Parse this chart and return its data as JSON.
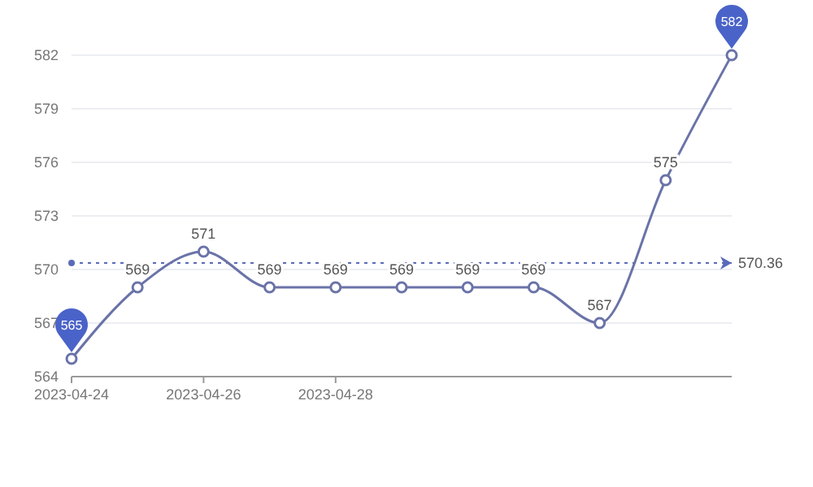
{
  "chart_data": {
    "type": "line",
    "x": [
      "2023-04-24",
      "2023-04-25",
      "2023-04-26",
      "2023-04-27",
      "2023-04-28",
      "2023-04-29",
      "2023-04-30",
      "2023-05-01",
      "2023-05-02",
      "2023-05-03",
      "2023-05-04"
    ],
    "series": [
      {
        "color": "#6a73a8",
        "values": [
          565,
          569,
          571,
          569,
          569,
          569,
          569,
          569,
          567,
          575,
          582
        ],
        "value_labels": [
          null,
          "569",
          "571",
          "569",
          "569",
          "569",
          "569",
          "569",
          "567",
          "575",
          null
        ]
      }
    ],
    "xlim": [
      "2023-04-24",
      "2023-05-04"
    ],
    "xticks": [
      {
        "value": "2023-04-24",
        "label": "2023-04-24"
      },
      {
        "value": "2023-04-26",
        "label": "2023-04-26"
      },
      {
        "value": "2023-04-28",
        "label": "2023-04-28"
      }
    ],
    "ylim": [
      564,
      582
    ],
    "yticks": [
      564,
      567,
      570,
      573,
      576,
      579,
      582
    ],
    "grid": "y",
    "marker": "circle",
    "line_style": "solid",
    "ref_lines": [
      {
        "axis": "y",
        "value": 570.36,
        "label": "570.36",
        "color": "#5a6ab8",
        "line_style": "dotted"
      }
    ],
    "annotations": [
      {
        "text": "565",
        "x": "2023-04-24",
        "y": 565
      },
      {
        "text": "582",
        "x": "2023-05-04",
        "y": 582
      }
    ]
  }
}
